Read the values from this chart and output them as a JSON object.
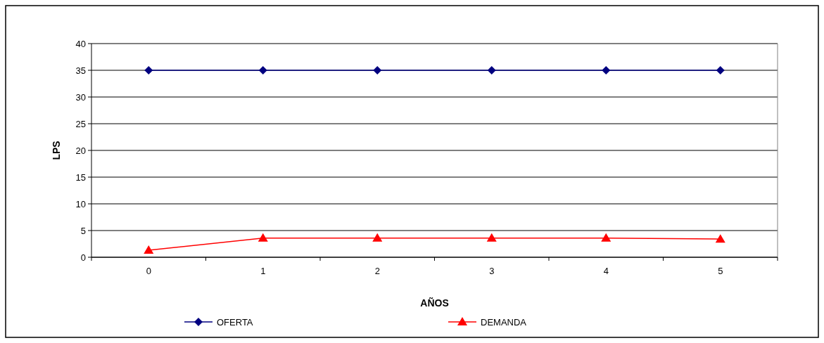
{
  "chart_data": {
    "type": "line",
    "xlabel": "AÑOS",
    "ylabel": "LPS",
    "categories": [
      "0",
      "1",
      "2",
      "3",
      "4",
      "5"
    ],
    "series": [
      {
        "name": "OFERTA",
        "color": "#000080",
        "marker": "diamond",
        "values": [
          35,
          35,
          35,
          35,
          35,
          35
        ]
      },
      {
        "name": "DEMANDA",
        "color": "#ff0000",
        "marker": "triangle",
        "values": [
          1.3,
          3.6,
          3.6,
          3.6,
          3.6,
          3.4
        ]
      }
    ],
    "ylim": [
      0,
      40
    ],
    "yticks": [
      0,
      5,
      10,
      15,
      20,
      25,
      30,
      35,
      40
    ],
    "grid": "y",
    "legend": "bottom"
  }
}
